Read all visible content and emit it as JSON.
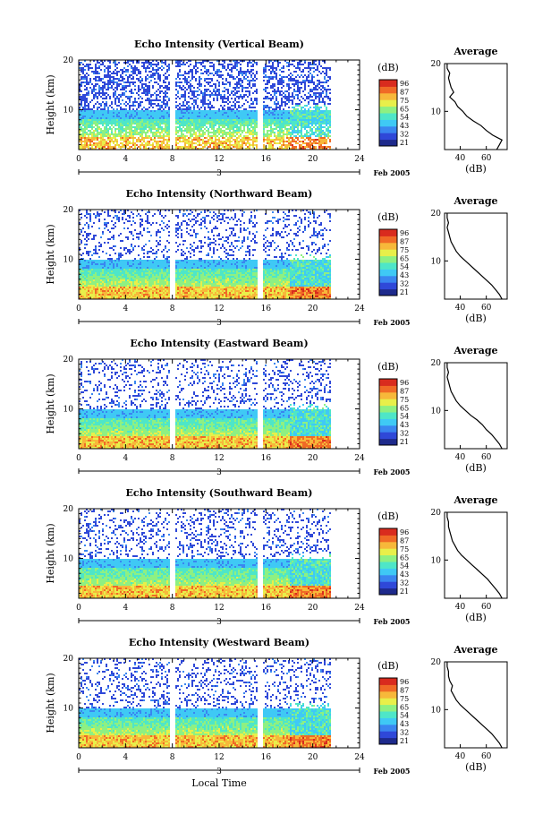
{
  "figure": {
    "xlabel": "Local Time",
    "date_label": "Feb 2005",
    "day_label": "3",
    "colorbar_unit": "(dB)",
    "colorbar_ticks": [
      "96",
      "87",
      "75",
      "65",
      "54",
      "43",
      "32",
      "21"
    ],
    "colorscale": [
      "#1e2a8c",
      "#2f48d8",
      "#3a86f0",
      "#3fc9f5",
      "#4ee6c8",
      "#8ef082",
      "#e8ef4a",
      "#f7b83a",
      "#f06a26",
      "#d92b1e"
    ],
    "profile_title": "Average",
    "profile_xlabel": "(dB)"
  },
  "chart_data": [
    {
      "type": "heatmap",
      "title": "Echo Intensity (Vertical Beam)",
      "xlabel": "Local Time",
      "ylabel": "Height (km)",
      "xlim": [
        0,
        24
      ],
      "ylim": [
        2,
        20
      ],
      "xticks": [
        0,
        4,
        8,
        12,
        16,
        20,
        24
      ],
      "yticks": [
        10,
        20
      ],
      "data_gaps_hours": [
        8,
        15.5
      ],
      "colorbar": {
        "label": "(dB)",
        "ticks": [
          21,
          32,
          43,
          54,
          65,
          75,
          87,
          96
        ]
      },
      "profile": {
        "title": "Average",
        "xlabel": "(dB)",
        "xticks": [
          40,
          60
        ],
        "ylim": [
          2,
          20
        ],
        "height_km": [
          2,
          3,
          4,
          5,
          6,
          7,
          8,
          9,
          10,
          11,
          12,
          13,
          14,
          15,
          16,
          17,
          18,
          19,
          20
        ],
        "value_db": [
          68,
          70,
          72,
          65,
          60,
          56,
          50,
          45,
          42,
          38,
          36,
          32,
          35,
          33,
          32,
          31,
          32,
          30,
          30
        ]
      }
    },
    {
      "type": "heatmap",
      "title": "Echo Intensity (Northward Beam)",
      "xlabel": "Local Time",
      "ylabel": "Height (km)",
      "xlim": [
        0,
        24
      ],
      "ylim": [
        2,
        20
      ],
      "xticks": [
        0,
        4,
        8,
        12,
        16,
        20,
        24
      ],
      "yticks": [
        10,
        20
      ],
      "data_gaps_hours": [
        8,
        15.5
      ],
      "colorbar": {
        "label": "(dB)",
        "ticks": [
          21,
          32,
          43,
          54,
          65,
          75,
          87,
          96
        ]
      },
      "profile": {
        "title": "Average",
        "xlabel": "(dB)",
        "xticks": [
          40,
          60
        ],
        "ylim": [
          2,
          20
        ],
        "height_km": [
          2,
          3,
          4,
          5,
          6,
          7,
          8,
          9,
          10,
          11,
          12,
          13,
          14,
          15,
          16,
          17,
          18,
          19,
          20
        ],
        "value_db": [
          72,
          70,
          67,
          64,
          60,
          56,
          52,
          48,
          44,
          40,
          37,
          35,
          33,
          32,
          31,
          30,
          31,
          30,
          30
        ]
      }
    },
    {
      "type": "heatmap",
      "title": "Echo Intensity (Eastward Beam)",
      "xlabel": "Local Time",
      "ylabel": "Height (km)",
      "xlim": [
        0,
        24
      ],
      "ylim": [
        2,
        20
      ],
      "xticks": [
        0,
        4,
        8,
        12,
        16,
        20,
        24
      ],
      "yticks": [
        10,
        20
      ],
      "data_gaps_hours": [
        8,
        15.5
      ],
      "colorbar": {
        "label": "(dB)",
        "ticks": [
          21,
          32,
          43,
          54,
          65,
          75,
          87,
          96
        ]
      },
      "profile": {
        "title": "Average",
        "xlabel": "(dB)",
        "xticks": [
          40,
          60
        ],
        "ylim": [
          2,
          20
        ],
        "height_km": [
          2,
          3,
          4,
          5,
          6,
          7,
          8,
          9,
          10,
          11,
          12,
          13,
          14,
          15,
          16,
          17,
          18,
          19,
          20
        ],
        "value_db": [
          72,
          70,
          67,
          64,
          60,
          57,
          53,
          48,
          44,
          40,
          37,
          35,
          33,
          32,
          31,
          30,
          31,
          30,
          30
        ]
      }
    },
    {
      "type": "heatmap",
      "title": "Echo Intensity (Southward Beam)",
      "xlabel": "Local Time",
      "ylabel": "Height (km)",
      "xlim": [
        0,
        24
      ],
      "ylim": [
        2,
        20
      ],
      "xticks": [
        0,
        4,
        8,
        12,
        16,
        20,
        24
      ],
      "yticks": [
        10,
        20
      ],
      "data_gaps_hours": [
        8,
        15.5
      ],
      "colorbar": {
        "label": "(dB)",
        "ticks": [
          21,
          32,
          43,
          54,
          65,
          75,
          87,
          96
        ]
      },
      "profile": {
        "title": "Average",
        "xlabel": "(dB)",
        "xticks": [
          40,
          60
        ],
        "ylim": [
          2,
          20
        ],
        "height_km": [
          2,
          3,
          4,
          5,
          6,
          7,
          8,
          9,
          10,
          11,
          12,
          13,
          14,
          15,
          16,
          17,
          18,
          19,
          20
        ],
        "value_db": [
          72,
          70,
          67,
          64,
          61,
          57,
          53,
          49,
          45,
          41,
          38,
          36,
          34,
          33,
          32,
          31,
          31,
          30,
          30
        ]
      }
    },
    {
      "type": "heatmap",
      "title": "Echo Intensity (Westward Beam)",
      "xlabel": "Local Time",
      "ylabel": "Height (km)",
      "xlim": [
        0,
        24
      ],
      "ylim": [
        2,
        20
      ],
      "xticks": [
        0,
        4,
        8,
        12,
        16,
        20,
        24
      ],
      "yticks": [
        10,
        20
      ],
      "data_gaps_hours": [
        8,
        15.5
      ],
      "colorbar": {
        "label": "(dB)",
        "ticks": [
          21,
          32,
          43,
          54,
          65,
          75,
          87,
          96
        ]
      },
      "profile": {
        "title": "Average",
        "xlabel": "(dB)",
        "xticks": [
          40,
          60
        ],
        "ylim": [
          2,
          20
        ],
        "height_km": [
          2,
          3,
          4,
          5,
          6,
          7,
          8,
          9,
          10,
          11,
          12,
          13,
          14,
          15,
          16,
          17,
          18,
          19,
          20
        ],
        "value_db": [
          72,
          70,
          67,
          64,
          60,
          56,
          52,
          48,
          44,
          40,
          37,
          35,
          33,
          34,
          32,
          31,
          31,
          30,
          30
        ]
      }
    }
  ]
}
